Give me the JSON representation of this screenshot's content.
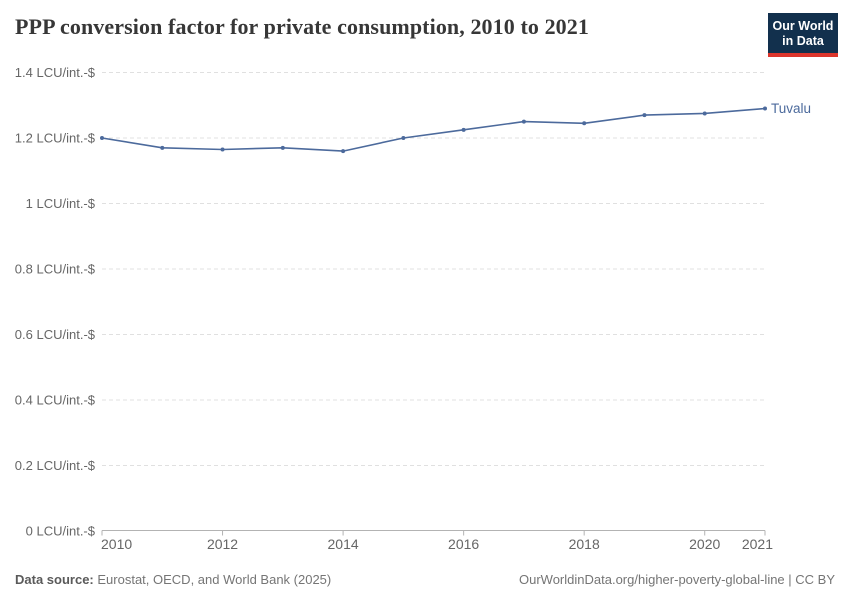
{
  "header": {
    "title": "PPP conversion factor for private consumption, 2010 to 2021",
    "logo": {
      "line1": "Our World",
      "line2": "in Data"
    }
  },
  "chart_data": {
    "type": "line",
    "title": "PPP conversion factor for private consumption, 2010 to 2021",
    "xlabel": "",
    "ylabel": "LCU/int.-$",
    "xlim": [
      2010,
      2021
    ],
    "ylim": [
      0,
      1.4
    ],
    "grid": "horizontal-dashed",
    "legend_position": "end-of-line",
    "x": [
      2010,
      2011,
      2012,
      2013,
      2014,
      2015,
      2016,
      2017,
      2018,
      2019,
      2020,
      2021
    ],
    "series": [
      {
        "name": "Tuvalu",
        "color": "#4C6A9C",
        "values": [
          1.2,
          1.17,
          1.165,
          1.17,
          1.16,
          1.2,
          1.225,
          1.25,
          1.245,
          1.27,
          1.275,
          1.29
        ]
      }
    ],
    "y_ticks": [
      {
        "value": 0,
        "label": "0 LCU/int.-$"
      },
      {
        "value": 0.2,
        "label": "0.2 LCU/int.-$"
      },
      {
        "value": 0.4,
        "label": "0.4 LCU/int.-$"
      },
      {
        "value": 0.6,
        "label": "0.6 LCU/int.-$"
      },
      {
        "value": 0.8,
        "label": "0.8 LCU/int.-$"
      },
      {
        "value": 1,
        "label": "1 LCU/int.-$"
      },
      {
        "value": 1.2,
        "label": "1.2 LCU/int.-$"
      },
      {
        "value": 1.4,
        "label": "1.4 LCU/int.-$"
      }
    ],
    "x_ticks": [
      {
        "value": 2010,
        "label": "2010"
      },
      {
        "value": 2012,
        "label": "2012"
      },
      {
        "value": 2014,
        "label": "2014"
      },
      {
        "value": 2016,
        "label": "2016"
      },
      {
        "value": 2018,
        "label": "2018"
      },
      {
        "value": 2020,
        "label": "2020"
      },
      {
        "value": 2021,
        "label": "2021"
      }
    ]
  },
  "footer": {
    "source_label": "Data source:",
    "source_text": "Eurostat, OECD, and World Bank (2025)",
    "attribution": "OurWorldinData.org/higher-poverty-global-line | CC BY"
  },
  "colors": {
    "series_blue": "#4C6A9C",
    "logo_navy": "#12304d",
    "logo_red": "#dc352c",
    "gridline": "#e0e0e0",
    "axis": "#b3b3b3",
    "tick_label": "#666666",
    "title_text": "#373737",
    "footer_text": "#757575"
  }
}
